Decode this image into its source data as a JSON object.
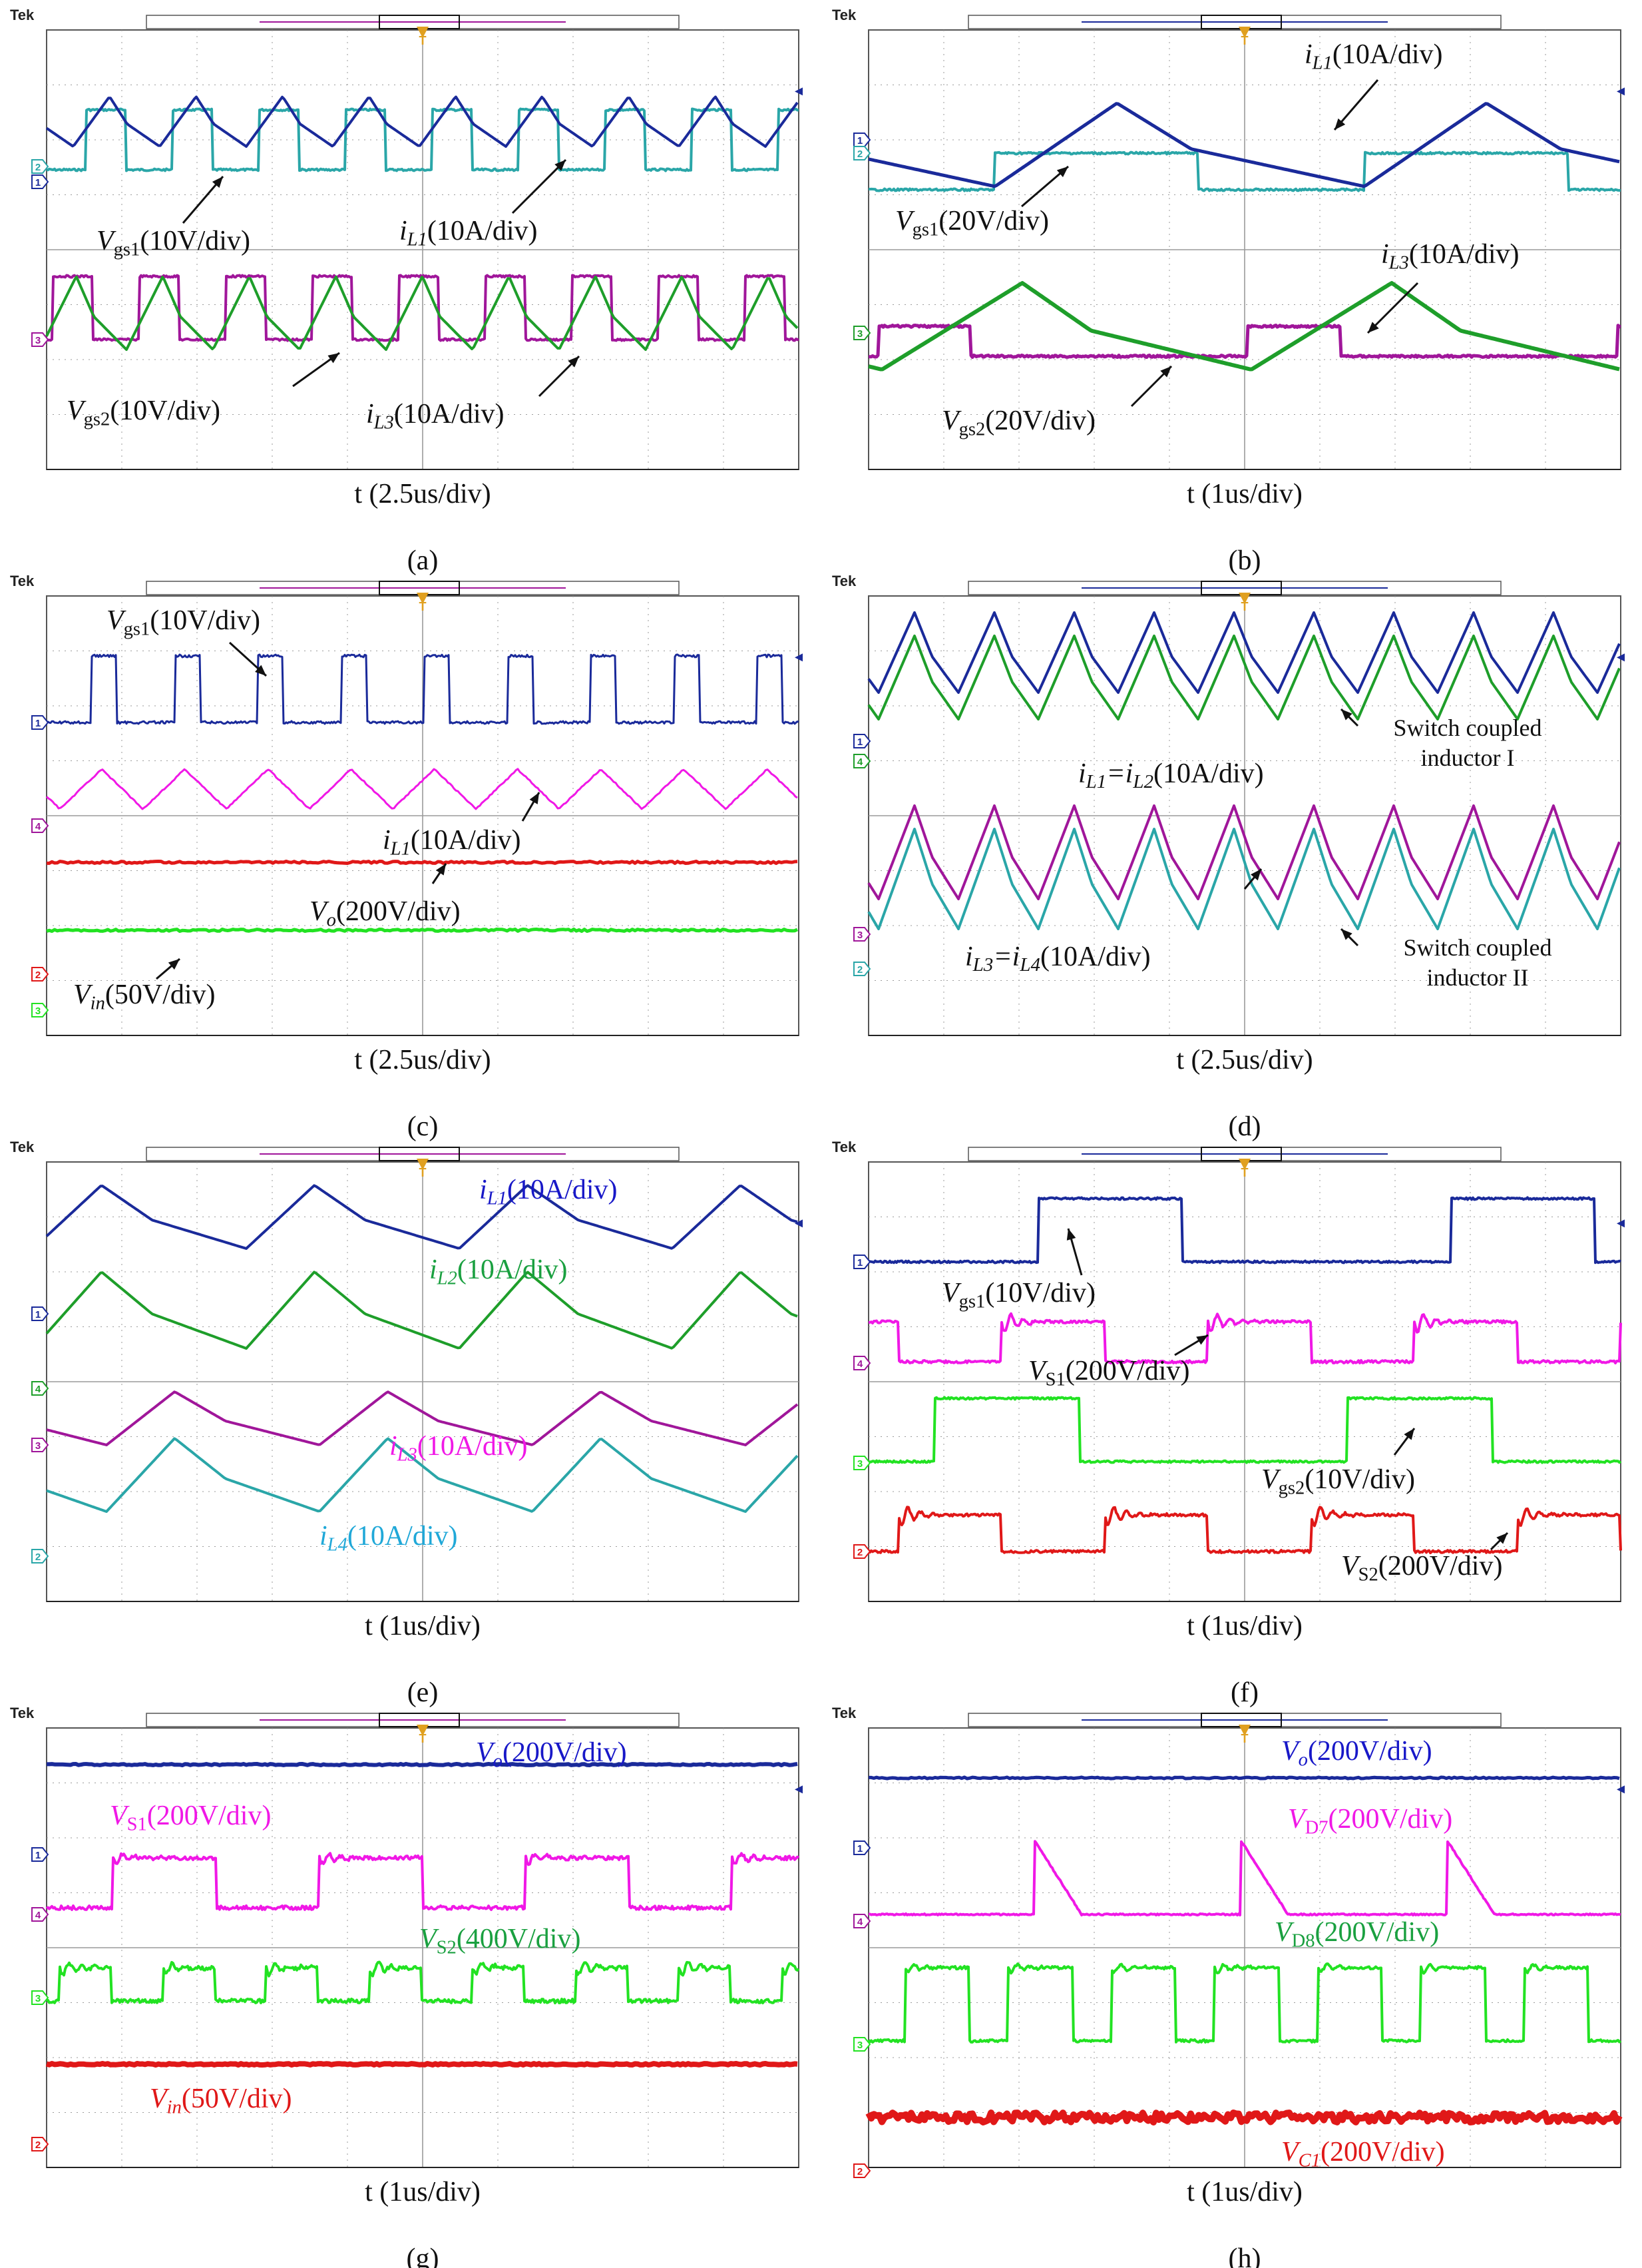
{
  "figure": {
    "scope_brand": "Tek",
    "trigger_marker": "T",
    "panels": [
      {
        "id": "a",
        "caption": "(a)",
        "time_label": "t (2.5us/div)",
        "channel_markers": [
          "2",
          "1",
          "3"
        ],
        "annotations": [
          {
            "sym": "V",
            "sub": "gs1",
            "unit": "(10V/div)",
            "italic_sub": false
          },
          {
            "sym": "i",
            "sub": "L1",
            "unit": "(10A/div)",
            "italic_sub": true
          },
          {
            "sym": "V",
            "sub": "gs2",
            "unit": "(10V/div)",
            "italic_sub": false
          },
          {
            "sym": "i",
            "sub": "L3",
            "unit": "(10A/div)",
            "italic_sub": true
          }
        ]
      },
      {
        "id": "b",
        "caption": "(b)",
        "time_label": "t (1us/div)",
        "channel_markers": [
          "1",
          "2",
          "3"
        ],
        "annotations": [
          {
            "sym": "i",
            "sub": "L1",
            "unit": "(10A/div)",
            "italic_sub": true
          },
          {
            "sym": "V",
            "sub": "gs1",
            "unit": "(20V/div)",
            "italic_sub": false
          },
          {
            "sym": "i",
            "sub": "L3",
            "unit": "(10A/div)",
            "italic_sub": true
          },
          {
            "sym": "V",
            "sub": "gs2",
            "unit": "(20V/div)",
            "italic_sub": false
          }
        ]
      },
      {
        "id": "c",
        "caption": "(c)",
        "time_label": "t (2.5us/div)",
        "channel_markers": [
          "1",
          "4",
          "2",
          "3"
        ],
        "annotations": [
          {
            "sym": "V",
            "sub": "gs1",
            "unit": "(10V/div)",
            "italic_sub": false
          },
          {
            "sym": "i",
            "sub": "L1",
            "unit": "(10A/div)",
            "italic_sub": true
          },
          {
            "sym": "V",
            "sub": "o",
            "unit": "(200V/div)",
            "italic_sub": true
          },
          {
            "sym": "V",
            "sub": "in",
            "unit": "(50V/div)",
            "italic_sub": true
          }
        ]
      },
      {
        "id": "d",
        "caption": "(d)",
        "time_label": "t (2.5us/div)",
        "channel_markers": [
          "1",
          "4",
          "3",
          "2"
        ],
        "annotations": [
          {
            "text": "i",
            "sub": "L1",
            "mid": "=i",
            "sub2": "L2",
            "unit": "(10A/div)"
          },
          {
            "text": "i",
            "sub": "L3",
            "mid": "=i",
            "sub2": "L4",
            "unit": "(10A/div)"
          },
          {
            "plain1": "Switch coupled",
            "plain2": "inductor I"
          },
          {
            "plain1": "Switch coupled",
            "plain2": "inductor II"
          }
        ]
      },
      {
        "id": "e",
        "caption": "(e)",
        "time_label": "t (1us/div)",
        "channel_markers": [
          "1",
          "4",
          "3",
          "2"
        ],
        "annotations": [
          {
            "sym": "i",
            "sub": "L1",
            "unit": "(10A/div)",
            "italic_sub": true
          },
          {
            "sym": "i",
            "sub": "L2",
            "unit": "(10A/div)",
            "italic_sub": true
          },
          {
            "sym": "i",
            "sub": "L3",
            "unit": "(10A/div)",
            "italic_sub": true
          },
          {
            "sym": "i",
            "sub": "L4",
            "unit": "(10A/div)",
            "italic_sub": true
          }
        ]
      },
      {
        "id": "f",
        "caption": "(f)",
        "time_label": "t (1us/div)",
        "channel_markers": [
          "1",
          "4",
          "3",
          "2"
        ],
        "annotations": [
          {
            "sym": "V",
            "sub": "gs1",
            "unit": "(10V/div)",
            "italic_sub": false
          },
          {
            "sym": "V",
            "sub": "S1",
            "unit": "(200V/div)",
            "italic_sub": false
          },
          {
            "sym": "V",
            "sub": "gs2",
            "unit": "(10V/div)",
            "italic_sub": false
          },
          {
            "sym": "V",
            "sub": "S2",
            "unit": "(200V/div)",
            "italic_sub": false
          }
        ]
      },
      {
        "id": "g",
        "caption": "(g)",
        "time_label": "t (1us/div)",
        "channel_markers": [
          "1",
          "4",
          "3",
          "2"
        ],
        "annotations": [
          {
            "sym": "V",
            "sub": "o",
            "unit": "(200V/div)",
            "italic_sub": true
          },
          {
            "sym": "V",
            "sub": "S1",
            "unit": "(200V/div)",
            "italic_sub": false
          },
          {
            "sym": "V",
            "sub": "S2",
            "unit": "(400V/div)",
            "italic_sub": false
          },
          {
            "sym": "V",
            "sub": "in",
            "unit": "(50V/div)",
            "italic_sub": true
          }
        ]
      },
      {
        "id": "h",
        "caption": "(h)",
        "time_label": "t (1us/div)",
        "channel_markers": [
          "1",
          "4",
          "3",
          "2"
        ],
        "annotations": [
          {
            "sym": "V",
            "sub": "o",
            "unit": "(200V/div)",
            "italic_sub": true
          },
          {
            "sym": "V",
            "sub": "D7",
            "unit": "(200V/div)",
            "italic_sub": false
          },
          {
            "sym": "V",
            "sub": "D8",
            "unit": "(200V/div)",
            "italic_sub": false
          },
          {
            "sym": "V",
            "sub": "C1",
            "unit": "(200V/div)",
            "italic_sub": true
          }
        ]
      }
    ]
  },
  "colors": {
    "ch1_blue": "#1a2a9a",
    "ch2_teal": "#2aa6a8",
    "ch3_green": "#1e9e2a",
    "ch4_magenta": "#a0169a",
    "bright_green": "#22e222",
    "bright_red": "#e01818",
    "bright_magenta": "#f018e6",
    "label_blue": "#1818c8",
    "label_green": "#1aa040",
    "label_cyan": "#20a8d8",
    "grid": "#9a9a9a"
  },
  "chart_data": [
    {
      "type": "line",
      "panel": "a",
      "title": "",
      "xlabel": "t (2.5us/div)",
      "ylabel": "",
      "series": [
        {
          "name": "Vgs1 (10V/div)"
        },
        {
          "name": "iL1 (10A/div)"
        },
        {
          "name": "Vgs2 (10V/div)"
        },
        {
          "name": "iL3 (10A/div)"
        }
      ]
    },
    {
      "type": "line",
      "panel": "b",
      "title": "",
      "xlabel": "t (1us/div)",
      "ylabel": "",
      "series": [
        {
          "name": "iL1 (10A/div)"
        },
        {
          "name": "Vgs1 (20V/div)"
        },
        {
          "name": "iL3 (10A/div)"
        },
        {
          "name": "Vgs2 (20V/div)"
        }
      ]
    },
    {
      "type": "line",
      "panel": "c",
      "title": "",
      "xlabel": "t (2.5us/div)",
      "ylabel": "",
      "series": [
        {
          "name": "Vgs1 (10V/div)"
        },
        {
          "name": "iL1 (10A/div)"
        },
        {
          "name": "Vo (200V/div)"
        },
        {
          "name": "Vin (50V/div)"
        }
      ]
    },
    {
      "type": "line",
      "panel": "d",
      "title": "",
      "xlabel": "t (2.5us/div)",
      "ylabel": "",
      "series": [
        {
          "name": "iL1 (10A/div)"
        },
        {
          "name": "iL2 (10A/div)"
        },
        {
          "name": "iL3 (10A/div)"
        },
        {
          "name": "iL4 (10A/div)"
        }
      ]
    },
    {
      "type": "line",
      "panel": "e",
      "title": "",
      "xlabel": "t (1us/div)",
      "ylabel": "",
      "series": [
        {
          "name": "iL1 (10A/div)"
        },
        {
          "name": "iL2 (10A/div)"
        },
        {
          "name": "iL3 (10A/div)"
        },
        {
          "name": "iL4 (10A/div)"
        }
      ]
    },
    {
      "type": "line",
      "panel": "f",
      "title": "",
      "xlabel": "t (1us/div)",
      "ylabel": "",
      "series": [
        {
          "name": "Vgs1 (10V/div)"
        },
        {
          "name": "VS1 (200V/div)"
        },
        {
          "name": "Vgs2 (10V/div)"
        },
        {
          "name": "VS2 (200V/div)"
        }
      ]
    },
    {
      "type": "line",
      "panel": "g",
      "title": "",
      "xlabel": "t (1us/div)",
      "ylabel": "",
      "series": [
        {
          "name": "Vo (200V/div)"
        },
        {
          "name": "VS1 (200V/div)"
        },
        {
          "name": "VS2 (400V/div)"
        },
        {
          "name": "Vin (50V/div)"
        }
      ]
    },
    {
      "type": "line",
      "panel": "h",
      "title": "",
      "xlabel": "t (1us/div)",
      "ylabel": "",
      "series": [
        {
          "name": "Vo (200V/div)"
        },
        {
          "name": "VD7 (200V/div)"
        },
        {
          "name": "VD8 (200V/div)"
        },
        {
          "name": "VC1 (200V/div)"
        }
      ]
    }
  ]
}
